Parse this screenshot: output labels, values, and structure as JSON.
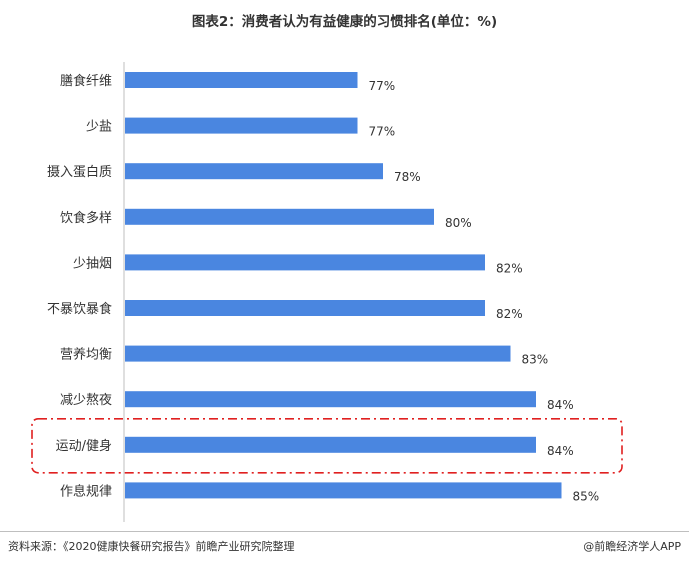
{
  "title": "图表2：消费者认为有益健康的习惯排名(单位：%)",
  "source": "资料来源：《2020健康快餐研究报告》前瞻产业研究院整理",
  "brand": "@前瞻经济学人APP",
  "chart_data": {
    "type": "bar",
    "orientation": "horizontal",
    "categories": [
      "膳食纤维",
      "少盐",
      "摄入蛋白质",
      "饮食多样",
      "少抽烟",
      "不暴饮暴食",
      "营养均衡",
      "减少熬夜",
      "运动/健身",
      "作息规律"
    ],
    "values": [
      77,
      77,
      78,
      80,
      82,
      82,
      83,
      84,
      84,
      85
    ],
    "value_labels": [
      "77%",
      "77%",
      "78%",
      "80%",
      "82%",
      "82%",
      "83%",
      "84%",
      "84%",
      "85%"
    ],
    "highlighted_category": "运动/健身",
    "bar_color": "#4a86e0",
    "highlight_border_color": "#e02020",
    "axis_range": [
      70,
      86
    ],
    "grid": false
  }
}
